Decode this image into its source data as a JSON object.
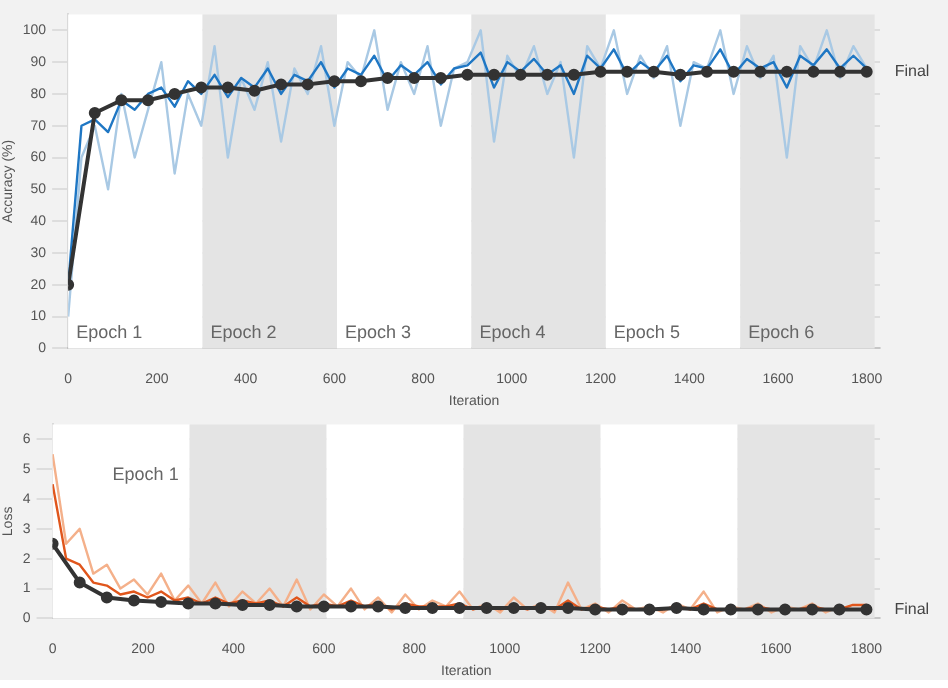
{
  "chart_data": [
    {
      "type": "line",
      "xlabel": "Iteration",
      "ylabel": "Accuracy (%)",
      "xlim": [
        0,
        1830
      ],
      "xticks": [
        0,
        200,
        400,
        600,
        800,
        1000,
        1200,
        1400,
        1600,
        1800
      ],
      "ylim": [
        0,
        105
      ],
      "yticks": [
        0,
        10,
        20,
        30,
        40,
        50,
        60,
        70,
        80,
        90,
        100
      ],
      "grid": "y",
      "x": [
        0,
        30,
        60,
        90,
        120,
        150,
        180,
        210,
        240,
        270,
        300,
        330,
        360,
        390,
        420,
        450,
        480,
        510,
        540,
        570,
        600,
        630,
        660,
        690,
        720,
        750,
        780,
        810,
        840,
        870,
        900,
        930,
        960,
        990,
        1020,
        1050,
        1080,
        1110,
        1140,
        1170,
        1200,
        1230,
        1260,
        1290,
        1320,
        1350,
        1380,
        1410,
        1440,
        1470,
        1500,
        1530,
        1560,
        1590,
        1620,
        1650,
        1680,
        1710,
        1740,
        1770,
        1800
      ],
      "bands": [
        {
          "axis": "x",
          "from": 0,
          "to": 303,
          "label": "Epoch 1",
          "color": "#ffffff"
        },
        {
          "axis": "x",
          "from": 303,
          "to": 606,
          "label": "Epoch 2",
          "color": "#e4e4e4"
        },
        {
          "axis": "x",
          "from": 606,
          "to": 909,
          "label": "Epoch 3",
          "color": "#ffffff"
        },
        {
          "axis": "x",
          "from": 909,
          "to": 1212,
          "label": "Epoch 4",
          "color": "#e4e4e4"
        },
        {
          "axis": "x",
          "from": 1212,
          "to": 1515,
          "label": "Epoch 5",
          "color": "#ffffff"
        },
        {
          "axis": "x",
          "from": 1515,
          "to": 1818,
          "label": "Epoch 6",
          "color": "#e4e4e4"
        }
      ],
      "annotations": [
        {
          "text": "Final",
          "x": 1800,
          "y": 87
        }
      ],
      "series": [
        {
          "color": "#a9c9e4",
          "values": [
            10,
            60,
            70,
            50,
            80,
            60,
            75,
            90,
            55,
            80,
            70,
            95,
            60,
            85,
            75,
            90,
            65,
            88,
            80,
            95,
            70,
            90,
            85,
            100,
            75,
            90,
            80,
            95,
            70,
            88,
            90,
            100,
            65,
            92,
            85,
            95,
            80,
            90,
            60,
            95,
            88,
            100,
            80,
            92,
            85,
            95,
            70,
            90,
            88,
            100,
            80,
            95,
            85,
            92,
            60,
            95,
            88,
            100,
            85,
            95,
            88
          ]
        },
        {
          "color": "#1f77c4",
          "values": [
            20,
            70,
            72,
            68,
            78,
            75,
            80,
            82,
            76,
            84,
            80,
            86,
            79,
            85,
            82,
            88,
            80,
            86,
            84,
            90,
            82,
            88,
            86,
            92,
            84,
            89,
            86,
            90,
            83,
            88,
            89,
            93,
            82,
            90,
            87,
            91,
            86,
            89,
            80,
            92,
            88,
            94,
            86,
            90,
            87,
            92,
            84,
            89,
            88,
            94,
            86,
            91,
            88,
            90,
            82,
            92,
            89,
            94,
            88,
            92,
            88
          ]
        },
        {
          "color": "#333333",
          "marker": "circle",
          "x": [
            0,
            60,
            120,
            180,
            240,
            300,
            360,
            420,
            480,
            540,
            600,
            660,
            720,
            780,
            840,
            900,
            960,
            1020,
            1080,
            1140,
            1200,
            1260,
            1320,
            1380,
            1440,
            1500,
            1560,
            1620,
            1680,
            1740,
            1800
          ],
          "values": [
            20,
            74,
            78,
            78,
            80,
            82,
            82,
            81,
            83,
            83,
            84,
            84,
            85,
            85,
            85,
            86,
            86,
            86,
            86,
            86,
            87,
            87,
            87,
            86,
            87,
            87,
            87,
            87,
            87,
            87,
            87
          ]
        }
      ]
    },
    {
      "type": "line",
      "xlabel": "Iteration",
      "ylabel": "Loss",
      "xlim": [
        0,
        1830
      ],
      "xticks": [
        0,
        200,
        400,
        600,
        800,
        1000,
        1200,
        1400,
        1600,
        1800
      ],
      "ylim": [
        0,
        6.5
      ],
      "yticks": [
        0,
        1,
        2,
        3,
        4,
        5,
        6
      ],
      "grid": "y",
      "x": [
        0,
        30,
        60,
        90,
        120,
        150,
        180,
        210,
        240,
        270,
        300,
        330,
        360,
        390,
        420,
        450,
        480,
        510,
        540,
        570,
        600,
        630,
        660,
        690,
        720,
        750,
        780,
        810,
        840,
        870,
        900,
        930,
        960,
        990,
        1020,
        1050,
        1080,
        1110,
        1140,
        1170,
        1200,
        1230,
        1260,
        1290,
        1320,
        1350,
        1380,
        1410,
        1440,
        1470,
        1500,
        1530,
        1560,
        1590,
        1620,
        1650,
        1680,
        1710,
        1740,
        1770,
        1800
      ],
      "bands": [
        {
          "axis": "x",
          "from": 0,
          "to": 303,
          "label": "Epoch 1",
          "color": "#ffffff"
        },
        {
          "axis": "x",
          "from": 303,
          "to": 606,
          "label": null,
          "color": "#e4e4e4"
        },
        {
          "axis": "x",
          "from": 606,
          "to": 909,
          "label": null,
          "color": "#ffffff"
        },
        {
          "axis": "x",
          "from": 909,
          "to": 1212,
          "label": null,
          "color": "#e4e4e4"
        },
        {
          "axis": "x",
          "from": 1212,
          "to": 1515,
          "label": null,
          "color": "#ffffff"
        },
        {
          "axis": "x",
          "from": 1515,
          "to": 1818,
          "label": null,
          "color": "#e4e4e4"
        }
      ],
      "annotations": [
        {
          "text": "Final",
          "x": 1800,
          "y": 0.3
        }
      ],
      "series": [
        {
          "color": "#f4b08a",
          "values": [
            5.5,
            2.5,
            3,
            1.5,
            1.8,
            1,
            1.3,
            0.8,
            1.5,
            0.6,
            1.1,
            0.5,
            1.2,
            0.4,
            0.9,
            0.5,
            1.0,
            0.4,
            1.3,
            0.3,
            0.8,
            0.4,
            1.0,
            0.3,
            0.7,
            0.2,
            0.8,
            0.3,
            0.6,
            0.4,
            0.9,
            0.3,
            0.5,
            0.2,
            0.7,
            0.3,
            0.5,
            0.2,
            1.2,
            0.3,
            0.5,
            0.2,
            0.6,
            0.3,
            0.4,
            0.2,
            0.5,
            0.3,
            0.9,
            0.2,
            0.4,
            0.3,
            0.5,
            0.2,
            0.4,
            0.3,
            0.5,
            0.2,
            0.4,
            0.3,
            0.3
          ]
        },
        {
          "color": "#e0561c",
          "values": [
            4.5,
            2,
            1.8,
            1.2,
            1.1,
            0.8,
            0.9,
            0.7,
            0.9,
            0.6,
            0.7,
            0.5,
            0.7,
            0.5,
            0.6,
            0.5,
            0.6,
            0.4,
            0.7,
            0.4,
            0.5,
            0.4,
            0.6,
            0.4,
            0.5,
            0.3,
            0.5,
            0.4,
            0.4,
            0.4,
            0.5,
            0.3,
            0.4,
            0.3,
            0.4,
            0.3,
            0.4,
            0.3,
            0.6,
            0.3,
            0.4,
            0.3,
            0.4,
            0.3,
            0.3,
            0.3,
            0.4,
            0.3,
            0.5,
            0.3,
            0.3,
            0.3,
            0.4,
            0.3,
            0.3,
            0.3,
            0.4,
            0.3,
            0.3,
            0.45,
            0.45
          ]
        },
        {
          "color": "#333333",
          "marker": "circle",
          "x": [
            0,
            60,
            120,
            180,
            240,
            300,
            360,
            420,
            480,
            540,
            600,
            660,
            720,
            780,
            840,
            900,
            960,
            1020,
            1080,
            1140,
            1200,
            1260,
            1320,
            1380,
            1440,
            1500,
            1560,
            1620,
            1680,
            1740,
            1800
          ],
          "values": [
            2.5,
            1.2,
            0.7,
            0.6,
            0.55,
            0.5,
            0.5,
            0.45,
            0.45,
            0.4,
            0.4,
            0.4,
            0.4,
            0.35,
            0.35,
            0.35,
            0.35,
            0.35,
            0.35,
            0.35,
            0.3,
            0.3,
            0.3,
            0.35,
            0.3,
            0.3,
            0.3,
            0.3,
            0.3,
            0.3,
            0.3
          ]
        }
      ]
    }
  ]
}
